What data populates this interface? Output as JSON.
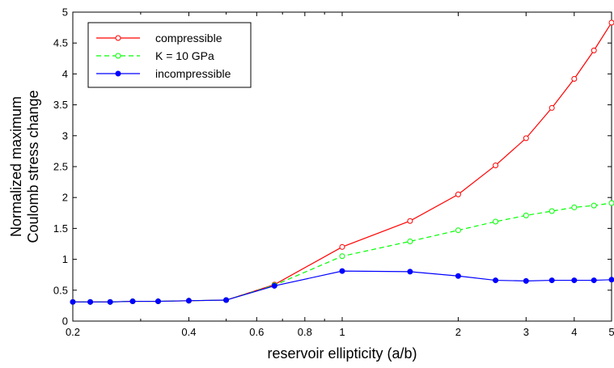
{
  "chart_data": {
    "type": "line",
    "xlabel": "reservoir ellipticity (a/b)",
    "ylabel_lines": [
      "Normalized maximum",
      "Coulomb stress change"
    ],
    "xscale": "log",
    "xlim": [
      0.2,
      5
    ],
    "ylim": [
      0,
      5
    ],
    "xticks": [
      0.2,
      0.4,
      0.6,
      0.8,
      1,
      2,
      3,
      4,
      5
    ],
    "xtick_labels": [
      "0.2",
      "0.4",
      "0.6",
      "0.8",
      "1",
      "2",
      "3",
      "4",
      "5"
    ],
    "yticks": [
      0,
      0.5,
      1,
      1.5,
      2,
      2.5,
      3,
      3.5,
      4,
      4.5,
      5
    ],
    "ytick_labels": [
      "0",
      "0.5",
      "1",
      "1.5",
      "2",
      "2.5",
      "3",
      "3.5",
      "4",
      "4.5",
      "5"
    ],
    "grid": false,
    "legend_position": "top-left",
    "x": [
      0.2,
      0.222,
      0.25,
      0.286,
      0.333,
      0.4,
      0.5,
      0.667,
      1,
      1.5,
      2,
      2.5,
      3,
      3.5,
      4,
      4.5,
      5
    ],
    "series": [
      {
        "name": "compressible",
        "color": "#ff0000",
        "line_style": "solid",
        "marker": "open-circle",
        "values": [
          0.31,
          0.31,
          0.31,
          0.32,
          0.32,
          0.33,
          0.34,
          0.59,
          1.2,
          1.62,
          2.05,
          2.52,
          2.96,
          3.45,
          3.92,
          4.38,
          4.83
        ]
      },
      {
        "name": "K = 10 GPa",
        "color": "#00ff00",
        "line_style": "dashed",
        "marker": "open-circle",
        "values": [
          0.31,
          0.31,
          0.31,
          0.32,
          0.32,
          0.33,
          0.34,
          0.58,
          1.05,
          1.29,
          1.47,
          1.61,
          1.71,
          1.78,
          1.84,
          1.87,
          1.91
        ]
      },
      {
        "name": "incompressible",
        "color": "#0000ff",
        "line_style": "solid",
        "marker": "filled-circle",
        "values": [
          0.31,
          0.31,
          0.31,
          0.32,
          0.32,
          0.33,
          0.34,
          0.57,
          0.81,
          0.8,
          0.73,
          0.66,
          0.65,
          0.66,
          0.66,
          0.66,
          0.67
        ]
      }
    ]
  }
}
